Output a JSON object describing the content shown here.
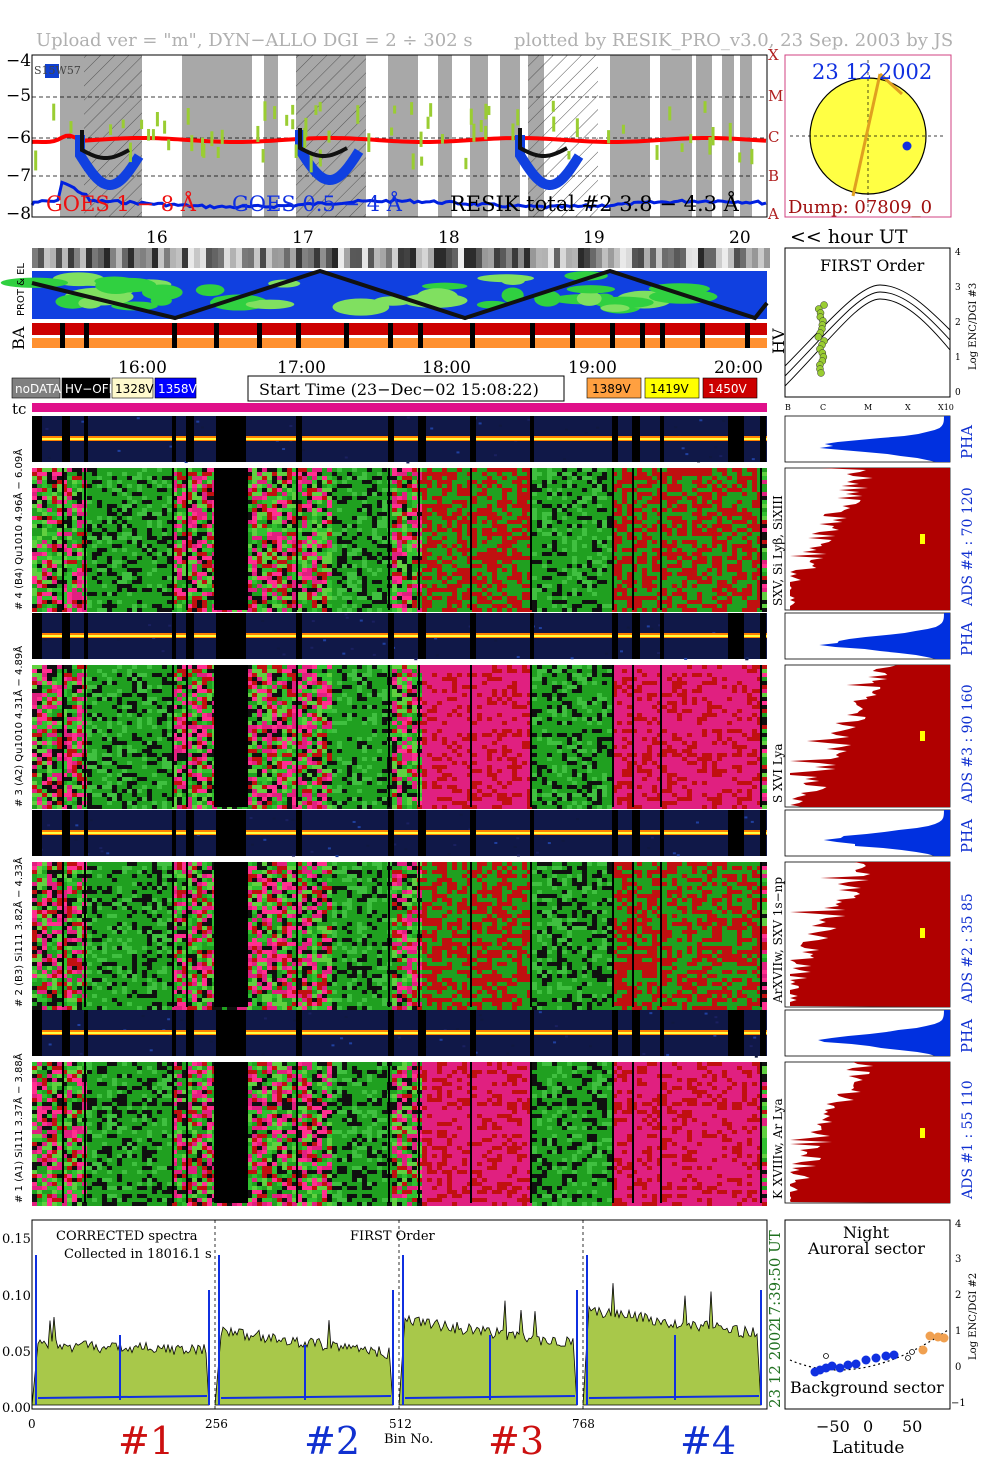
{
  "header": {
    "upload": "Upload ver = \"m\", DYN−ALLO DGI =   2 ÷ 302 s",
    "plotted": "plotted by RESIK_PRO_v3.0, 23 Sep. 2003 by JS"
  },
  "goes_panel": {
    "y_ticks": [
      "−4",
      "−5",
      "−6",
      "−7",
      "−8"
    ],
    "class_ticks": [
      "X",
      "M",
      "C",
      "B",
      "A"
    ],
    "legend_goes_long": "GOES 1 − 8 Å",
    "legend_goes_short": "GOES 0.5 − 4 Å",
    "legend_resik": "RESIK total #2  3.8 − 4.3 Å",
    "sun_label": "S15W57",
    "colors": {
      "goes_long": "#ff0000",
      "goes_short": "#0000ff",
      "resik": "#000000",
      "resik_fit": "#9acd32"
    }
  },
  "sun_panel": {
    "date": "23 12 2002",
    "dump": "Dump: 07809_0"
  },
  "hour_axis": {
    "ticks": [
      "16",
      "17",
      "18",
      "19",
      "20"
    ],
    "unit": "<< hour UT"
  },
  "orbit_panel": {
    "label_prot": "PROT & EL",
    "label_ba": "BA",
    "label_hv": "HV"
  },
  "first_order_panel": {
    "title": "FIRST Order",
    "y_label": "Log ENC/DGI #3",
    "y_ticks": [
      "4",
      "3",
      "2",
      "1",
      "0"
    ],
    "x_ticks": [
      "B",
      "C",
      "M",
      "X",
      "X10"
    ]
  },
  "time_axis": {
    "ticks": [
      "16:00",
      "17:00",
      "18:00",
      "19:00",
      "20:00"
    ]
  },
  "legend": {
    "items_left": [
      {
        "label": "noDATA",
        "bg": "#808080",
        "fg": "#ffffff"
      },
      {
        "label": "HV−OFF",
        "bg": "#000000",
        "fg": "#ffffff"
      },
      {
        "label": "1328V",
        "bg": "#fffacd",
        "fg": "#000000"
      },
      {
        "label": "1358V",
        "bg": "#0000ff",
        "fg": "#ffffff"
      }
    ],
    "start_time": "Start Time (23−Dec−02 15:08:22)",
    "items_right": [
      {
        "label": "1389V",
        "bg": "#ffa040",
        "fg": "#000000"
      },
      {
        "label": "1419V",
        "bg": "#ffff00",
        "fg": "#000000"
      },
      {
        "label": "1450V",
        "bg": "#cc0000",
        "fg": "#ffffff"
      }
    ],
    "tc": "tc"
  },
  "channels": [
    {
      "pha_label": "# 4 (B4) Qu1010 4.96Å − 6.09Å",
      "pha_right": "PHA",
      "lines": "SXV, Si Lyβ, SiXIII",
      "ads": "ADS #4 :    70 120"
    },
    {
      "pha_label": "# 3 (A2) Qu1010  4.31Å − 4.89Å",
      "pha_right": "PHA",
      "lines": "S XVI Lya",
      "ads": "ADS #3 :    90 160"
    },
    {
      "pha_label": "# 2 (B3) Si111  3.82Å − 4.33Å",
      "pha_right": "PHA",
      "lines": "ArXVIIw, SXV 1s−np",
      "ads": "ADS #2 :    35 85"
    },
    {
      "pha_label": "# 1 (A1) Si111  3.37Å − 3.88Å",
      "pha_right": "PHA",
      "lines": "K XVIIIw, Ar Lya",
      "ads": "ADS #1 :    55 110"
    }
  ],
  "spectrum_panel": {
    "title": "CORRECTED spectra",
    "collected": "Collected in 18016.1 s",
    "order": "FIRST Order",
    "y_ticks": [
      "0.15",
      "0.10",
      "0.05",
      "0.00"
    ],
    "x_ticks": [
      "0",
      "256",
      "512",
      "768"
    ],
    "x_label": "Bin No.",
    "channel_labels": [
      "#1",
      "#2",
      "#3",
      "#4"
    ],
    "date_vert": "23 12 2002",
    "time_vert": "17:39:50 UT"
  },
  "latitude_panel": {
    "title1": "Night",
    "title2": "Auroral sector",
    "title3": "Background sector",
    "x_label": "Latitude",
    "x_ticks": [
      "−50",
      "0",
      "50"
    ],
    "y_ticks": [
      "4",
      "3",
      "2",
      "1",
      "0",
      "−1"
    ],
    "y_label": "Log ENC/DGI #2"
  }
}
